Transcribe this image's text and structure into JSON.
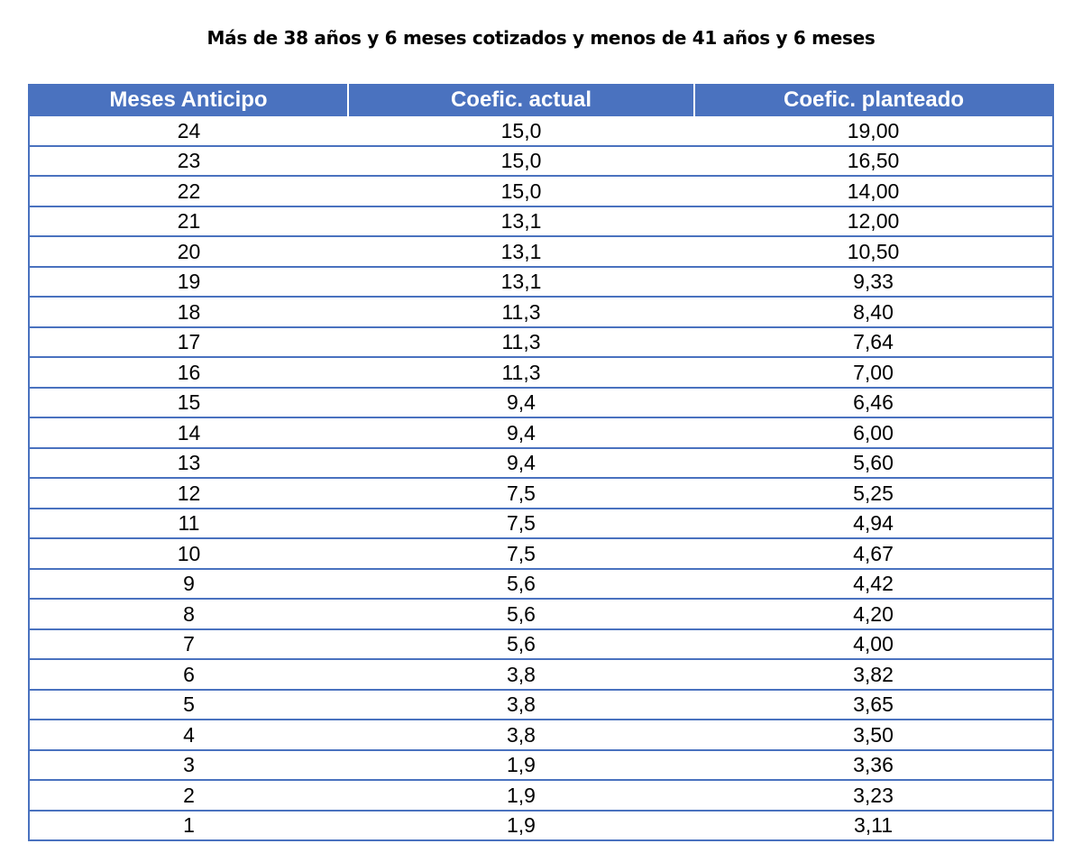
{
  "title": "Más de 38 años y 6 meses cotizados y menos de 41 años y 6 meses",
  "table": {
    "headers": [
      "Meses Anticipo",
      "Coefic. actual",
      "Coefic. planteado"
    ],
    "header_color": "#4a72bf",
    "rows": [
      [
        "24",
        "15,0",
        "19,00"
      ],
      [
        "23",
        "15,0",
        "16,50"
      ],
      [
        "22",
        "15,0",
        "14,00"
      ],
      [
        "21",
        "13,1",
        "12,00"
      ],
      [
        "20",
        "13,1",
        "10,50"
      ],
      [
        "19",
        "13,1",
        "9,33"
      ],
      [
        "18",
        "11,3",
        "8,40"
      ],
      [
        "17",
        "11,3",
        "7,64"
      ],
      [
        "16",
        "11,3",
        "7,00"
      ],
      [
        "15",
        "9,4",
        "6,46"
      ],
      [
        "14",
        "9,4",
        "6,00"
      ],
      [
        "13",
        "9,4",
        "5,60"
      ],
      [
        "12",
        "7,5",
        "5,25"
      ],
      [
        "11",
        "7,5",
        "4,94"
      ],
      [
        "10",
        "7,5",
        "4,67"
      ],
      [
        "9",
        "5,6",
        "4,42"
      ],
      [
        "8",
        "5,6",
        "4,20"
      ],
      [
        "7",
        "5,6",
        "4,00"
      ],
      [
        "6",
        "3,8",
        "3,82"
      ],
      [
        "5",
        "3,8",
        "3,65"
      ],
      [
        "4",
        "3,8",
        "3,50"
      ],
      [
        "3",
        "1,9",
        "3,36"
      ],
      [
        "2",
        "1,9",
        "3,23"
      ],
      [
        "1",
        "1,9",
        "3,11"
      ]
    ]
  }
}
